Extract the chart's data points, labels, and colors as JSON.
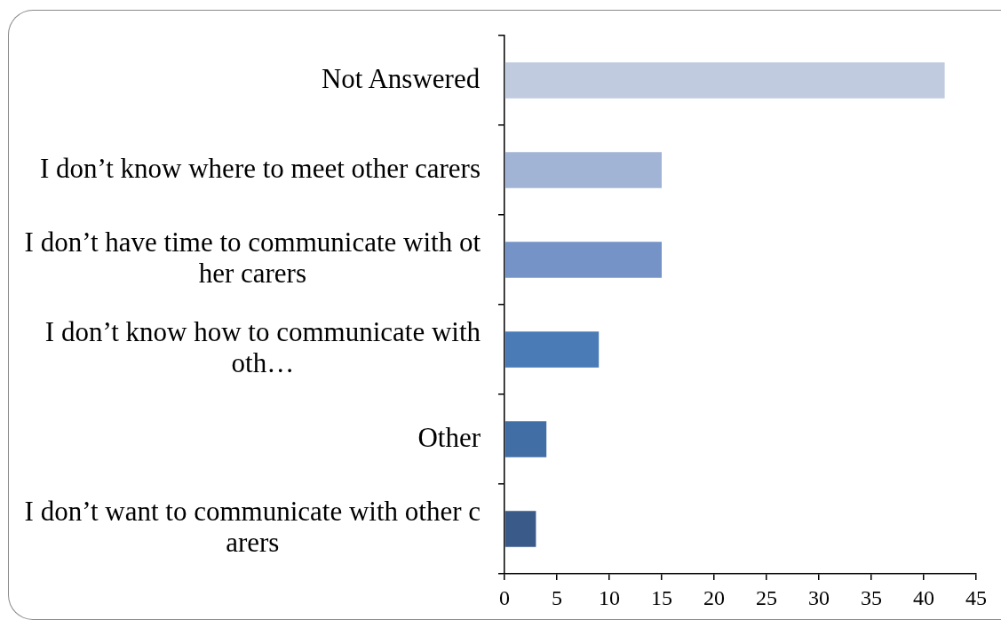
{
  "chart_data": {
    "type": "bar",
    "orientation": "horizontal",
    "categories": [
      "Not Answered",
      "I don’t know where to meet other carers",
      "I don’t have time to communicate with ot\nher carers",
      "I don’t know how to communicate with\noth…",
      "Other",
      "I don’t want to communicate with other c\narers"
    ],
    "values": [
      42,
      15,
      15,
      9,
      4,
      3
    ],
    "colors": [
      "#c1cbe0",
      "#a2b4d6",
      "#7593c6",
      "#4a7bb7",
      "#426ea6",
      "#3a5a8a"
    ],
    "xlim": [
      0,
      45
    ],
    "xticks": [
      0,
      5,
      10,
      15,
      20,
      25,
      30,
      35,
      40,
      45
    ],
    "legend": false
  }
}
